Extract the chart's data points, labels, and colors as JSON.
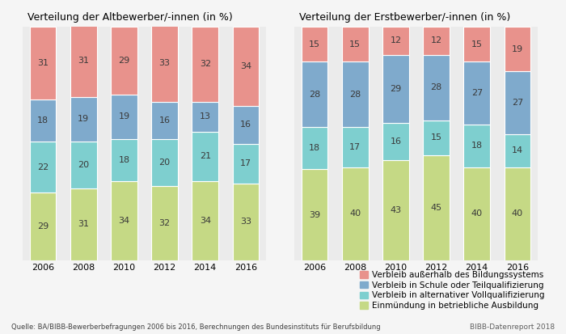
{
  "alt_years": [
    "2006",
    "2008",
    "2010",
    "2012",
    "2014",
    "2016"
  ],
  "alt_einmuendung": [
    29,
    31,
    34,
    32,
    34,
    33
  ],
  "alt_alternativ": [
    22,
    20,
    18,
    20,
    21,
    17
  ],
  "alt_schule": [
    18,
    19,
    19,
    16,
    13,
    16
  ],
  "alt_ausserhalb": [
    31,
    31,
    29,
    33,
    32,
    34
  ],
  "erst_years": [
    "2006",
    "2008",
    "2010",
    "2012",
    "2014",
    "2016"
  ],
  "erst_einmuendung": [
    39,
    40,
    43,
    45,
    40,
    40
  ],
  "erst_alternativ": [
    18,
    17,
    16,
    15,
    18,
    14
  ],
  "erst_schule": [
    28,
    28,
    29,
    28,
    27,
    27
  ],
  "erst_ausserhalb": [
    15,
    15,
    12,
    12,
    15,
    19
  ],
  "color_einmuendung": "#c5d985",
  "color_alternativ": "#7ecfcf",
  "color_schule": "#7faacc",
  "color_ausserhalb": "#e8928c",
  "title_alt": "Verteilung der Altbewerber/-innen (in %)",
  "title_erst": "Verteilung der Erstbewerber/-innen (in %)",
  "legend_ausserhalb": "Verbleib außerhalb des Bildungssystems",
  "legend_schule": "Verbleib in Schule oder Teilqualifizierung",
  "legend_alternativ": "Verbleib in alternativer Vollqualifizierung",
  "legend_einmuendung": "Einmündung in betriebliche Ausbildung",
  "source_text": "Quelle: BA/BIBB-Bewerberbefragungen 2006 bis 2016, Berechnungen des Bundesinstituts für Berufsbildung",
  "bibb_text": "BIBB-Datenreport 2018",
  "bg_color": "#ebebeb",
  "fig_bg": "#f5f5f5",
  "bar_width": 0.65,
  "text_fontsize": 8.0,
  "title_fontsize": 9.0,
  "legend_fontsize": 7.5,
  "label_fontsize": 8.0
}
